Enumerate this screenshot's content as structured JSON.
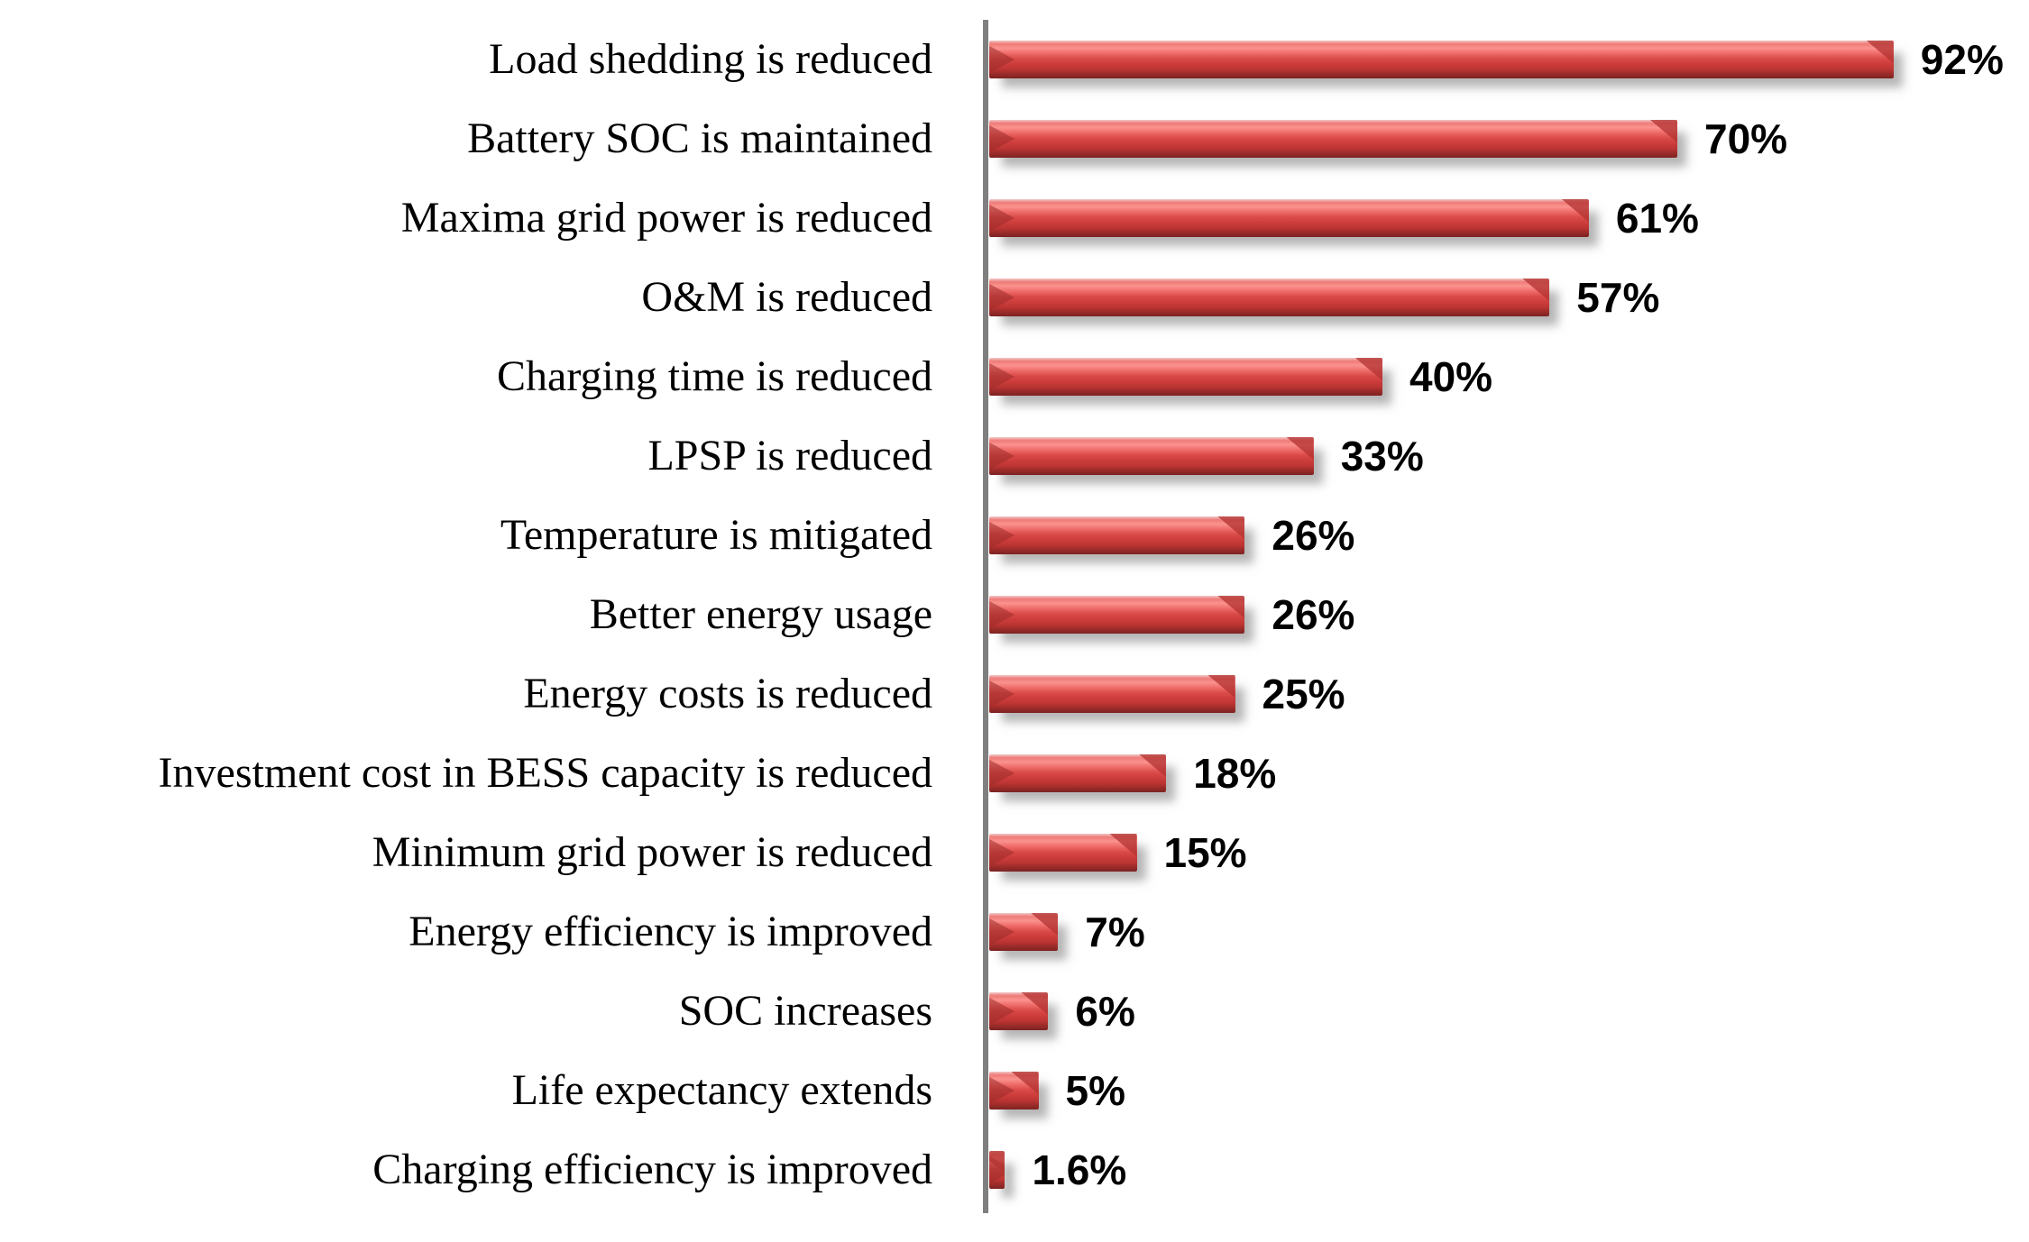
{
  "chart_data": {
    "type": "bar",
    "orientation": "horizontal",
    "title": "",
    "xlabel": "",
    "ylabel": "",
    "xlim": [
      0,
      100
    ],
    "grid": false,
    "legend": false,
    "categories": [
      "Load shedding is reduced",
      "Battery SOC is maintained",
      "Maxima grid power is reduced",
      "O&M is reduced",
      "Charging time is reduced",
      "LPSP is reduced",
      "Temperature is mitigated",
      "Better energy usage",
      "Energy costs is reduced",
      "Investment cost in BESS capacity is reduced",
      "Minimum grid power is reduced",
      "Energy efficiency is improved",
      "SOC increases",
      "Life expectancy extends",
      "Charging efficiency is improved"
    ],
    "values": [
      92,
      70,
      61,
      57,
      40,
      33,
      26,
      26,
      25,
      18,
      15,
      7,
      6,
      5,
      1.6
    ],
    "value_labels": [
      "92%",
      "70%",
      "61%",
      "57%",
      "40%",
      "33%",
      "26%",
      "26%",
      "25%",
      "18%",
      "15%",
      "7%",
      "6%",
      "5%",
      "1.6%"
    ]
  },
  "colors": {
    "bar_main": "#d94a48",
    "bar_highlight": "#fa928e",
    "bar_dark": "#7c2321",
    "axis": "#7f7f7f",
    "background": "#ffffff",
    "text": "#000000"
  }
}
